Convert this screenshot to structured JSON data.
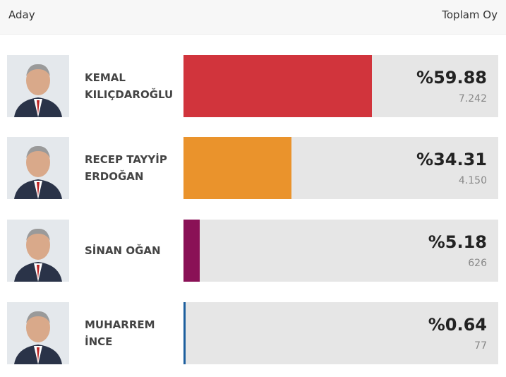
{
  "header": {
    "candidate": "Aday",
    "votes": "Toplam Oy"
  },
  "candidates": [
    {
      "name": "KEMAL KILIÇDAROĞLU",
      "percent": 59.88,
      "percent_label": "%59.88",
      "votes": "7.242",
      "color": "#d1343c"
    },
    {
      "name": "RECEP TAYYİP ERDOĞAN",
      "percent": 34.31,
      "percent_label": "%34.31",
      "votes": "4.150",
      "color": "#ea932c"
    },
    {
      "name": "SİNAN OĞAN",
      "percent": 5.18,
      "percent_label": "%5.18",
      "votes": "626",
      "color": "#8a1156"
    },
    {
      "name": "MUHARREM İNCE",
      "percent": 0.64,
      "percent_label": "%0.64",
      "votes": "77",
      "color": "#1d5f9e"
    }
  ]
}
